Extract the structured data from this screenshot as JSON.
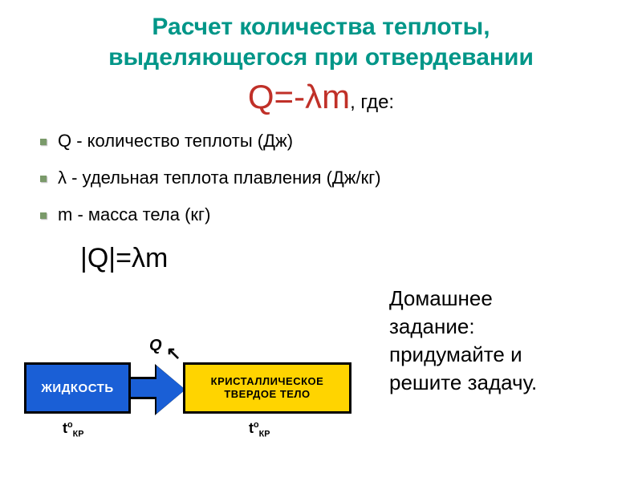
{
  "title": {
    "line1": "Расчет количества теплоты,",
    "line2": "выделяющегося при отвердевании",
    "color": "#009688",
    "fontsize": 30
  },
  "main_formula": {
    "expr": "Q=-λm",
    "suffix": ", где:",
    "expr_color": "#c03028",
    "expr_fontsize": 42,
    "suffix_color": "#000000",
    "suffix_fontsize": 24
  },
  "bullets": [
    "Q - количество теплоты (Дж)",
    "λ - удельная теплота плавления (Дж/кг)",
    "m - масса тела (кг)"
  ],
  "abs_formula": "|Q|=λm",
  "homework": {
    "line1": "Домашнее",
    "line2": "задание:",
    "line3": "придумайте и",
    "line4": "решите задачу."
  },
  "diagram": {
    "liquid_label": "ЖИДКОСТЬ",
    "solid_line1": "КРИСТАЛЛИЧЕСКОЕ",
    "solid_line2": "ТВЕРДОЕ ТЕЛО",
    "q_symbol": "Q",
    "arrow_glyph": "↖",
    "t_symbol": "t",
    "t_super": "o",
    "t_sub": "КР",
    "liquid_bg": "#1a5fd6",
    "solid_bg": "#ffd400"
  }
}
